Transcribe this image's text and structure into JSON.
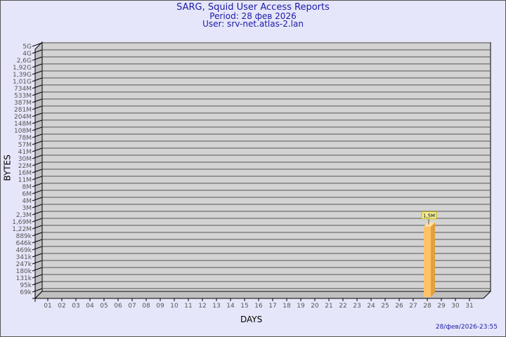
{
  "title": "SARG, Squid User Access Reports",
  "period": "Period: 28 фев 2026",
  "user": "User: srv-net.atlas-2.lan",
  "timestamp": "28/фев/2026-23:55",
  "chart_data": {
    "type": "bar",
    "xlabel": "DAYS",
    "ylabel": "BYTES",
    "y_scale": "logarithmic-like",
    "y_ticks": [
      "5G",
      "4G",
      "2,6G",
      "1,92G",
      "1,39G",
      "1,01G",
      "734M",
      "533M",
      "387M",
      "281M",
      "204M",
      "148M",
      "108M",
      "78M",
      "57M",
      "41M",
      "30M",
      "22M",
      "16M",
      "11M",
      "8M",
      "6M",
      "4M",
      "3M",
      "2,3M",
      "1,69M",
      "1,22M",
      "889k",
      "646k",
      "469k",
      "341k",
      "247k",
      "180k",
      "131k",
      "95k",
      "69k"
    ],
    "categories": [
      "01",
      "02",
      "03",
      "04",
      "05",
      "06",
      "07",
      "08",
      "09",
      "10",
      "11",
      "12",
      "13",
      "14",
      "15",
      "16",
      "17",
      "18",
      "19",
      "20",
      "21",
      "22",
      "23",
      "24",
      "25",
      "26",
      "27",
      "28",
      "29",
      "30",
      "31"
    ],
    "bars": [
      {
        "day": "28",
        "value": 1500000,
        "label": "1,5M"
      }
    ],
    "grid": true,
    "colors": {
      "bar": "#ffc266",
      "bar_side": "#e0a040",
      "bar_top": "#ffe0a0",
      "wall": "#d3d3d3",
      "side_wall": "#c0c0c0",
      "label_bg": "#f5f0a0"
    }
  }
}
